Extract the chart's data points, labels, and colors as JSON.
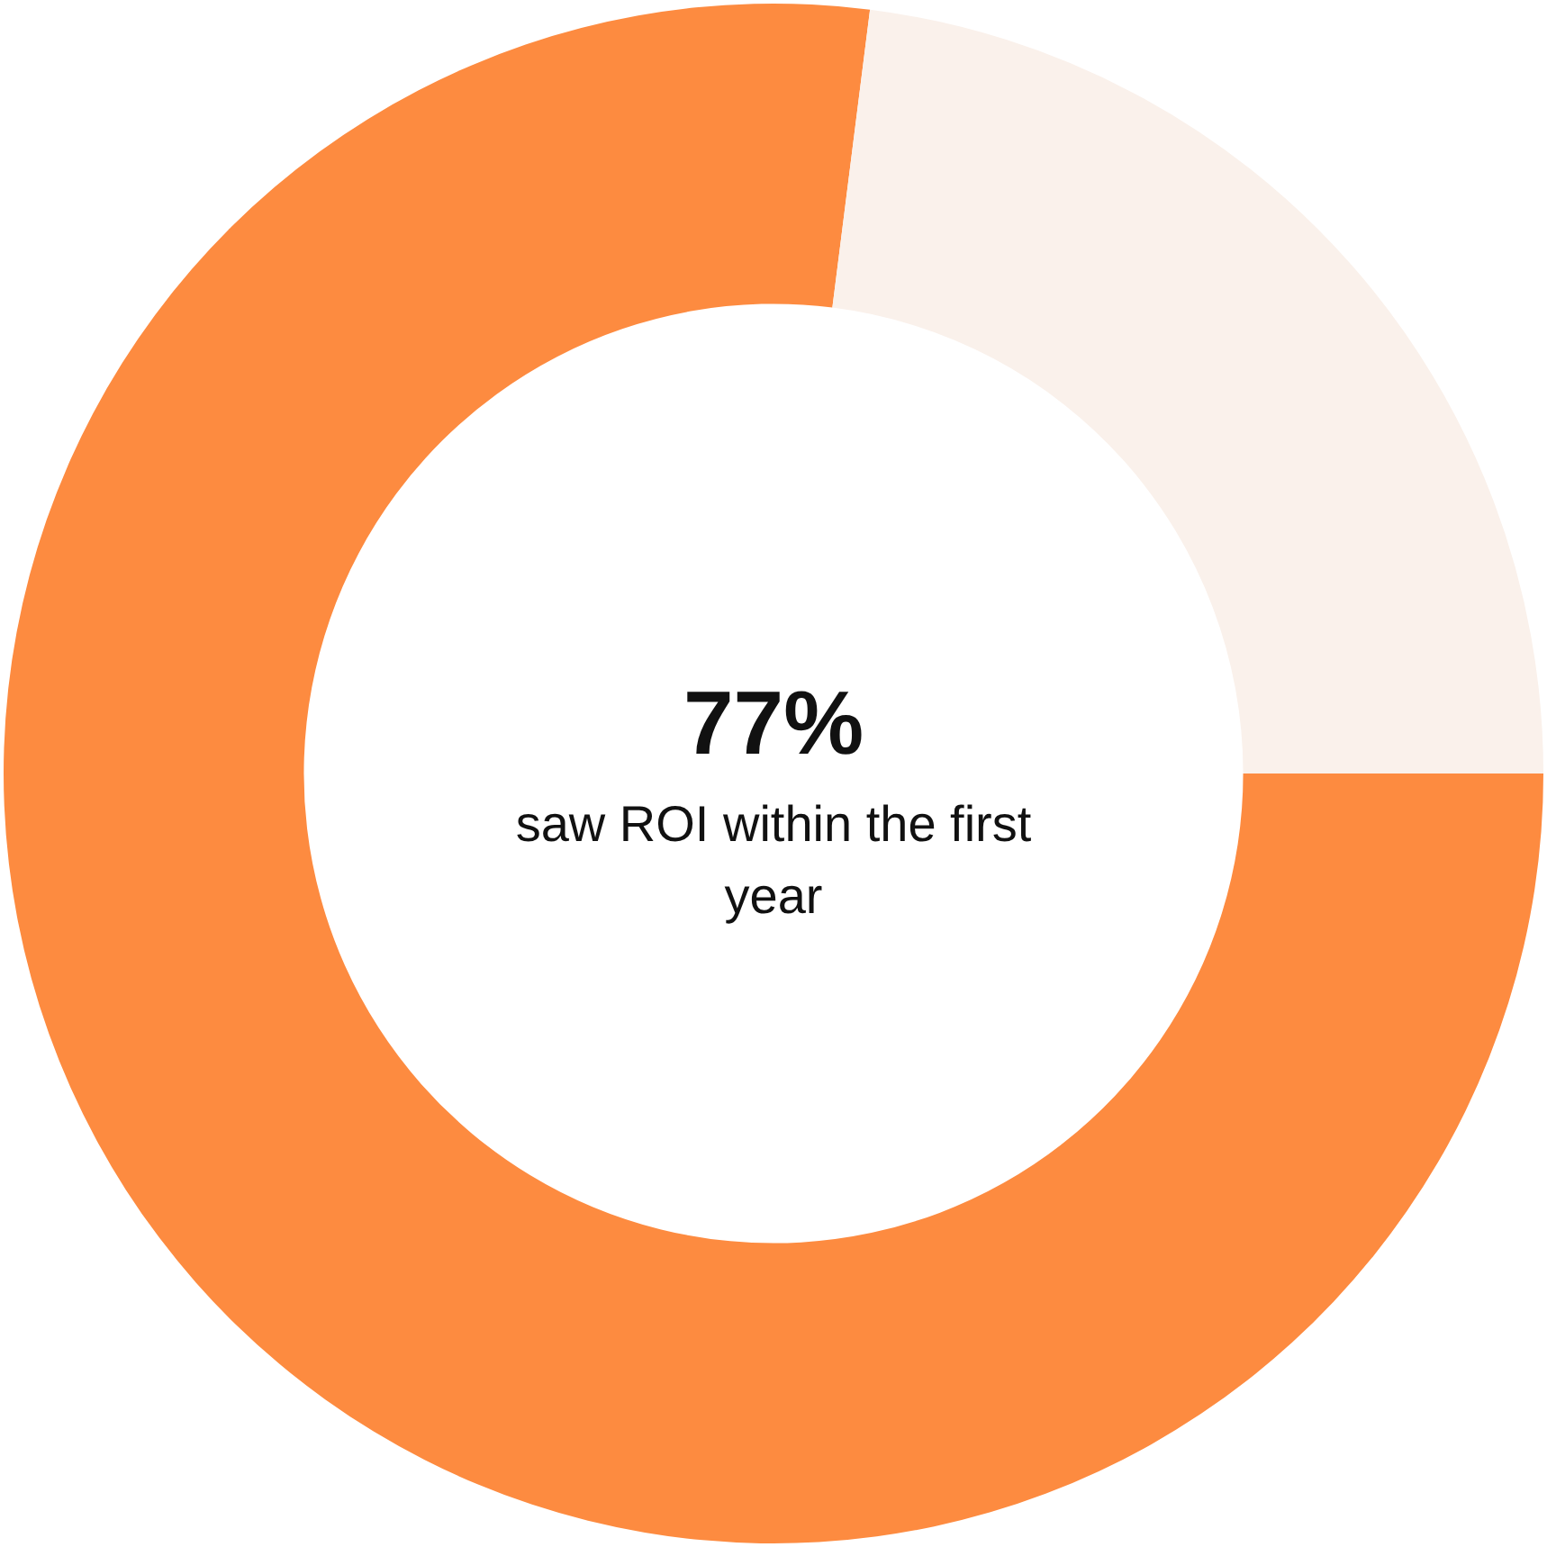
{
  "chart_data": {
    "type": "donut",
    "categories": [
      null,
      null
    ],
    "values": [
      77,
      23
    ],
    "colors": [
      "#fd8b40",
      "#faf1eb"
    ],
    "value_labels": [
      "77%",
      null
    ],
    "annotations": [
      "saw ROI within the first year"
    ],
    "legend": false
  }
}
